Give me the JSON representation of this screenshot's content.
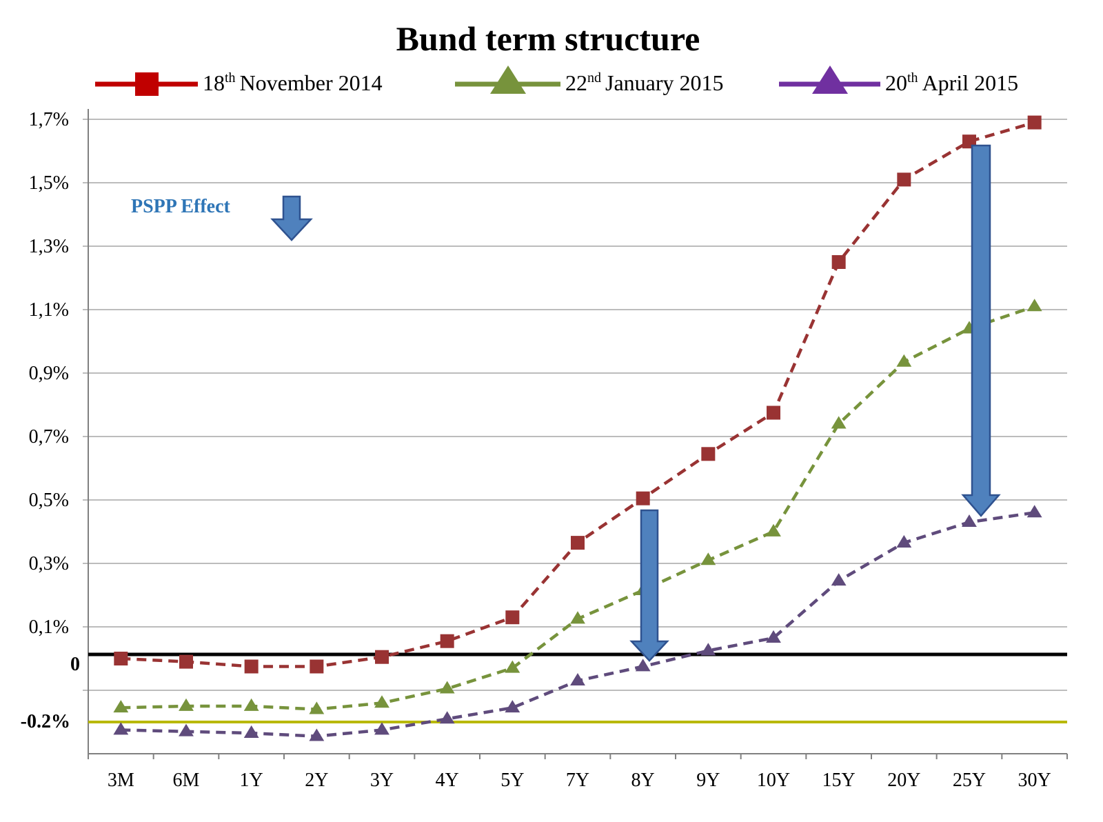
{
  "chart_data": {
    "type": "line",
    "title": "Bund term structure",
    "categories": [
      "3M",
      "6M",
      "1Y",
      "2Y",
      "3Y",
      "4Y",
      "5Y",
      "7Y",
      "8Y",
      "9Y",
      "10Y",
      "15Y",
      "20Y",
      "25Y",
      "30Y"
    ],
    "y_ticks": [
      {
        "value": 1.7,
        "label": "1,7%"
      },
      {
        "value": 1.5,
        "label": "1,5%"
      },
      {
        "value": 1.3,
        "label": "1,3%"
      },
      {
        "value": 1.1,
        "label": "1,1%"
      },
      {
        "value": 0.9,
        "label": "0,9%"
      },
      {
        "value": 0.7,
        "label": "0,7%"
      },
      {
        "value": 0.5,
        "label": "0,5%"
      },
      {
        "value": 0.3,
        "label": "0,3%"
      },
      {
        "value": 0.1,
        "label": "0,1%"
      }
    ],
    "zero_label": "0",
    "ref_label": "-0.2%",
    "ref_value": -0.2,
    "ylim": [
      -0.3,
      1.72
    ],
    "series": [
      {
        "name": "November 2014",
        "day": "18",
        "sup": "th",
        "color": "#993333",
        "marker": "square",
        "values": [
          0.0,
          -0.01,
          -0.025,
          -0.025,
          0.005,
          0.055,
          0.13,
          0.365,
          0.505,
          0.645,
          0.775,
          1.25,
          1.51,
          1.63,
          1.69
        ]
      },
      {
        "name": "January 2015",
        "day": "22",
        "sup": "nd",
        "color": "#77933c",
        "marker": "triangle",
        "values": [
          -0.155,
          -0.15,
          -0.15,
          -0.16,
          -0.14,
          -0.095,
          -0.03,
          0.125,
          0.215,
          0.31,
          0.4,
          0.74,
          0.935,
          1.04,
          1.11
        ]
      },
      {
        "name": "April 2015",
        "day": "20",
        "sup": "th",
        "color": "#5f4b7c",
        "marker": "triangle",
        "values": [
          -0.225,
          -0.23,
          -0.235,
          -0.245,
          -0.225,
          -0.19,
          -0.155,
          -0.07,
          -0.025,
          0.025,
          0.065,
          0.245,
          0.365,
          0.43,
          0.46
        ]
      }
    ],
    "annotation": "PSPP Effect",
    "accent_color": "#4f81bd",
    "ref_color": "#b8b800"
  }
}
